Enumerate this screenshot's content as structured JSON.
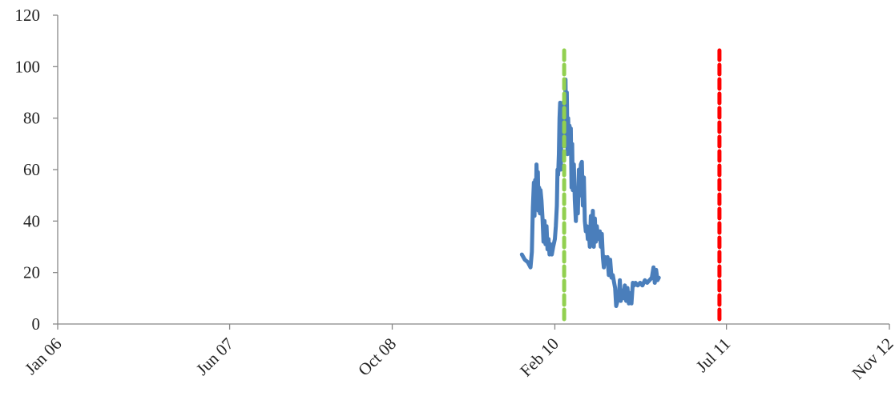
{
  "chart_data": {
    "type": "line",
    "title": "",
    "xlabel": "",
    "ylabel": "",
    "ylim": [
      0,
      120
    ],
    "xlim": [
      "2006-01-01",
      "2012-11-01"
    ],
    "y_ticks": [
      "0",
      "20",
      "40",
      "60",
      "80",
      "100",
      "120"
    ],
    "x_ticks": [
      {
        "label": "Jan 06",
        "date": "2006-01-01"
      },
      {
        "label": "Jun 07",
        "date": "2007-06-01"
      },
      {
        "label": "Oct 08",
        "date": "2008-10-01"
      },
      {
        "label": "Feb 10",
        "date": "2010-02-01"
      },
      {
        "label": "Jul 11",
        "date": "2011-07-01"
      },
      {
        "label": "Nov 12",
        "date": "2012-11-01"
      }
    ],
    "grid": false,
    "legend": "none",
    "series": [
      {
        "color": "#4a7ebb",
        "points": [
          [
            "2009-10-25",
            27
          ],
          [
            "2009-11-03",
            25
          ],
          [
            "2009-11-12",
            24
          ],
          [
            "2009-11-20",
            22
          ],
          [
            "2009-11-24",
            28
          ],
          [
            "2009-11-27",
            45
          ],
          [
            "2009-11-30",
            55
          ],
          [
            "2009-12-02",
            42
          ],
          [
            "2009-12-04",
            56
          ],
          [
            "2009-12-06",
            47
          ],
          [
            "2009-12-08",
            62
          ],
          [
            "2009-12-10",
            54
          ],
          [
            "2009-12-12",
            59
          ],
          [
            "2009-12-14",
            44
          ],
          [
            "2009-12-16",
            53
          ],
          [
            "2009-12-18",
            43
          ],
          [
            "2009-12-20",
            52
          ],
          [
            "2009-12-23",
            48
          ],
          [
            "2009-12-26",
            41
          ],
          [
            "2009-12-29",
            32
          ],
          [
            "2010-01-01",
            40
          ],
          [
            "2010-01-04",
            31
          ],
          [
            "2010-01-07",
            38
          ],
          [
            "2010-01-10",
            29
          ],
          [
            "2010-01-13",
            33
          ],
          [
            "2010-01-16",
            27
          ],
          [
            "2010-01-19",
            31
          ],
          [
            "2010-01-23",
            27
          ],
          [
            "2010-01-27",
            30
          ],
          [
            "2010-02-01",
            33
          ],
          [
            "2010-02-04",
            38
          ],
          [
            "2010-02-07",
            46
          ],
          [
            "2010-02-09",
            60
          ],
          [
            "2010-02-11",
            58
          ],
          [
            "2010-02-13",
            66
          ],
          [
            "2010-02-15",
            80
          ],
          [
            "2010-02-17",
            86
          ],
          [
            "2010-02-19",
            60
          ],
          [
            "2010-02-21",
            82
          ],
          [
            "2010-02-23",
            74
          ],
          [
            "2010-02-25",
            86
          ],
          [
            "2010-02-27",
            70
          ],
          [
            "2010-03-01",
            84
          ],
          [
            "2010-03-03",
            73
          ],
          [
            "2010-03-05",
            95
          ],
          [
            "2010-03-07",
            72
          ],
          [
            "2010-03-09",
            90
          ],
          [
            "2010-03-11",
            66
          ],
          [
            "2010-03-13",
            80
          ],
          [
            "2010-03-15",
            70
          ],
          [
            "2010-03-17",
            77
          ],
          [
            "2010-03-19",
            68
          ],
          [
            "2010-03-21",
            76
          ],
          [
            "2010-03-23",
            53
          ],
          [
            "2010-03-25",
            70
          ],
          [
            "2010-03-27",
            52
          ],
          [
            "2010-03-30",
            62
          ],
          [
            "2010-04-02",
            48
          ],
          [
            "2010-04-05",
            40
          ],
          [
            "2010-04-08",
            52
          ],
          [
            "2010-04-11",
            43
          ],
          [
            "2010-04-14",
            60
          ],
          [
            "2010-04-17",
            50
          ],
          [
            "2010-04-20",
            62
          ],
          [
            "2010-04-23",
            63
          ],
          [
            "2010-04-26",
            46
          ],
          [
            "2010-04-29",
            57
          ],
          [
            "2010-05-02",
            40
          ],
          [
            "2010-05-05",
            36
          ],
          [
            "2010-05-08",
            38
          ],
          [
            "2010-05-11",
            33
          ],
          [
            "2010-05-14",
            36
          ],
          [
            "2010-05-17",
            30
          ],
          [
            "2010-05-20",
            42
          ],
          [
            "2010-05-23",
            32
          ],
          [
            "2010-05-26",
            44
          ],
          [
            "2010-05-29",
            30
          ],
          [
            "2010-06-01",
            41
          ],
          [
            "2010-06-04",
            32
          ],
          [
            "2010-06-07",
            38
          ],
          [
            "2010-06-10",
            34
          ],
          [
            "2010-06-13",
            33
          ],
          [
            "2010-06-16",
            36
          ],
          [
            "2010-06-19",
            30
          ],
          [
            "2010-06-22",
            35
          ],
          [
            "2010-06-25",
            26
          ],
          [
            "2010-06-28",
            22
          ],
          [
            "2010-07-01",
            26
          ],
          [
            "2010-07-05",
            24
          ],
          [
            "2010-07-09",
            26
          ],
          [
            "2010-07-13",
            19
          ],
          [
            "2010-07-17",
            25
          ],
          [
            "2010-07-21",
            18
          ],
          [
            "2010-07-25",
            19
          ],
          [
            "2010-07-29",
            16
          ],
          [
            "2010-08-01",
            14
          ],
          [
            "2010-08-04",
            7
          ],
          [
            "2010-08-08",
            9
          ],
          [
            "2010-08-12",
            10
          ],
          [
            "2010-08-15",
            17
          ],
          [
            "2010-08-18",
            9
          ],
          [
            "2010-08-22",
            13
          ],
          [
            "2010-08-26",
            10
          ],
          [
            "2010-08-30",
            15
          ],
          [
            "2010-09-03",
            9
          ],
          [
            "2010-09-07",
            14
          ],
          [
            "2010-09-11",
            8
          ],
          [
            "2010-09-15",
            12
          ],
          [
            "2010-09-19",
            8
          ],
          [
            "2010-09-23",
            16
          ],
          [
            "2010-09-27",
            15
          ],
          [
            "2010-10-01",
            16
          ],
          [
            "2010-10-08",
            15
          ],
          [
            "2010-10-15",
            16
          ],
          [
            "2010-10-22",
            15
          ],
          [
            "2010-10-29",
            17
          ],
          [
            "2010-11-05",
            16
          ],
          [
            "2010-11-12",
            17
          ],
          [
            "2010-11-19",
            18
          ],
          [
            "2010-11-24",
            22
          ],
          [
            "2010-11-28",
            16
          ],
          [
            "2010-12-02",
            21
          ],
          [
            "2010-12-06",
            17
          ],
          [
            "2010-12-10",
            18
          ]
        ]
      }
    ],
    "vertical_lines": [
      {
        "date": "2010-03-01",
        "color": "#92d050",
        "style": "dashed"
      },
      {
        "date": "2011-06-10",
        "color": "#ff0000",
        "style": "dashed"
      }
    ]
  }
}
